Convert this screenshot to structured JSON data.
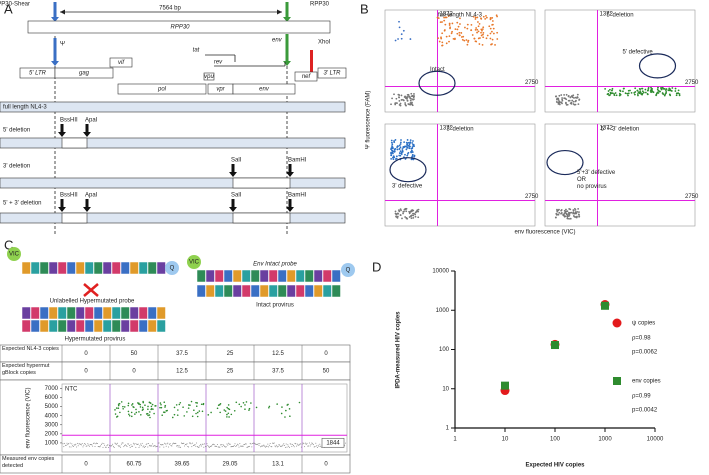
{
  "panel_a": {
    "letter": "A",
    "shear_label": "RPP30-Shear",
    "rpp30_label": "RPP30",
    "distance": "7564 bp",
    "gene": "RPP30",
    "psi": "Ψ",
    "env": "env",
    "xhoi": "XhoI",
    "genome": [
      "5' LTR",
      "gag",
      "vif",
      "tat",
      "rev",
      "vpu",
      "vpr",
      "env",
      "nef",
      "3' LTR",
      "pol"
    ],
    "rows": [
      {
        "label": "full length NL4-3",
        "enzymes": []
      },
      {
        "label": "5' deletion",
        "enzymes": [
          "BssHII",
          "ApaI"
        ]
      },
      {
        "label": "3' deletion",
        "enzymes": [
          "SalI",
          "BamHI"
        ]
      },
      {
        "label": "5' + 3' deletion",
        "enzymes": [
          "BssHII",
          "ApaI",
          "SalI",
          "BamHI"
        ]
      }
    ]
  },
  "panel_b": {
    "letter": "B",
    "y_label": "Ψ fluorescence (FAM)",
    "x_label": "env fluorescence (VIC)",
    "threshold_x": "1372",
    "threshold_y": "2750",
    "plots": [
      {
        "title": "full-length NL4-3",
        "note": [
          "Intact"
        ]
      },
      {
        "title": "5' deletion",
        "note": [
          "5' defective"
        ]
      },
      {
        "title": "3' deletion",
        "note": [
          "3' defective"
        ]
      },
      {
        "title": "5' + 3' deletion",
        "note": [
          "5'+3' defective",
          "OR",
          "no provirus"
        ]
      }
    ]
  },
  "panel_c": {
    "letter": "C",
    "vic": "VIC",
    "q": "Q",
    "intact_probe": "Env Intact probe",
    "hyper_probe": "Unlabelled Hypermutated probe",
    "hyper_provirus": "Hypermutated provirus",
    "intact_provirus": "Intact provirus",
    "table": {
      "rows": [
        {
          "label": "Expected NL4-3 copies",
          "values": [
            0,
            50,
            37.5,
            25,
            12.5,
            0
          ]
        },
        {
          "label": "Expected hypermut gBlock copies",
          "values": [
            0,
            0,
            12.5,
            25,
            37.5,
            50
          ]
        }
      ],
      "plot": {
        "label": "NTC",
        "y_label": "env fluorescence (VIC)",
        "ylim": [
          0,
          7500
        ],
        "yticks": [
          1000,
          2000,
          3000,
          4000,
          5000,
          6000,
          7000
        ],
        "threshold": 1844
      },
      "measured": {
        "label": "Measured env copies detected",
        "values": [
          0,
          60.75,
          39.65,
          29.05,
          13.1,
          0
        ]
      }
    }
  },
  "panel_d": {
    "letter": "D"
  },
  "chart_data": {
    "type": "scatter",
    "x_label": "Expected HIV copies",
    "y_label": "IPDA-measured HIV copies",
    "log_x": true,
    "log_y": true,
    "xlim": [
      1,
      10000
    ],
    "ylim": [
      1,
      10000
    ],
    "xticks": [
      1,
      10,
      100,
      1000,
      10000
    ],
    "yticks": [
      1,
      10,
      100,
      1000,
      10000
    ],
    "x": [
      10,
      100,
      1000
    ],
    "series": [
      {
        "name": "ψ copies",
        "color": "#e31a1c",
        "marker": "circle",
        "values": [
          9,
          135,
          1400
        ],
        "stats": [
          "ρ=0.98",
          "p=0.0062"
        ]
      },
      {
        "name": "env copies",
        "color": "#2e8b2e",
        "marker": "square",
        "values": [
          12,
          130,
          1300
        ],
        "stats": [
          "ρ=0.99",
          "p=0.0042"
        ]
      }
    ]
  }
}
